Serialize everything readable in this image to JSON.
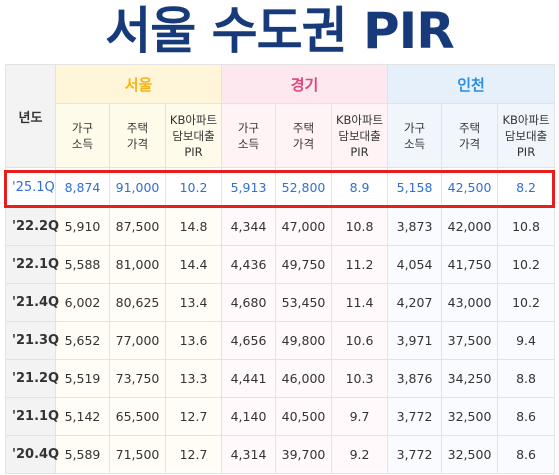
{
  "title": "서울 수도권 PIR",
  "header": {
    "year": "년도",
    "groups": [
      "서울",
      "경기",
      "인천"
    ],
    "sub": [
      "가구\n소득",
      "주택\n가격",
      "KB아파트\n담보대출\nPIR"
    ]
  },
  "rows": [
    [
      "'25.1Q",
      "8,874",
      "91,000",
      "10.2",
      "5,913",
      "52,800",
      "8.9",
      "5,158",
      "42,500",
      "8.2"
    ],
    [
      "'22.2Q",
      "5,910",
      "87,500",
      "14.8",
      "4,344",
      "47,000",
      "10.8",
      "3,873",
      "42,000",
      "10.8"
    ],
    [
      "'22.1Q",
      "5,588",
      "81,000",
      "14.4",
      "4,436",
      "49,750",
      "11.2",
      "4,054",
      "41,750",
      "10.2"
    ],
    [
      "'21.4Q",
      "6,002",
      "80,625",
      "13.4",
      "4,680",
      "53,450",
      "11.4",
      "4,207",
      "43,000",
      "10.2"
    ],
    [
      "'21.3Q",
      "5,652",
      "77,000",
      "13.6",
      "4,656",
      "49,800",
      "10.6",
      "3,971",
      "37,500",
      "9.4"
    ],
    [
      "'21.2Q",
      "5,519",
      "73,750",
      "13.3",
      "4,441",
      "46,000",
      "10.3",
      "3,876",
      "34,250",
      "8.8"
    ],
    [
      "'21.1Q",
      "5,142",
      "65,500",
      "12.7",
      "4,140",
      "40,500",
      "9.7",
      "3,772",
      "32,500",
      "8.6"
    ],
    [
      "'20.4Q",
      "5,589",
      "71,500",
      "12.7",
      "4,314",
      "39,700",
      "9.2",
      "3,772",
      "32,500",
      "8.6"
    ]
  ],
  "colors": {
    "title": "#173a7a",
    "seoul": "#f3b419",
    "gyeonggi": "#e0457b",
    "incheon": "#2c8fe0",
    "highlight_row_text": "#2f6fd6",
    "highlight_border": "#e61e1e"
  }
}
